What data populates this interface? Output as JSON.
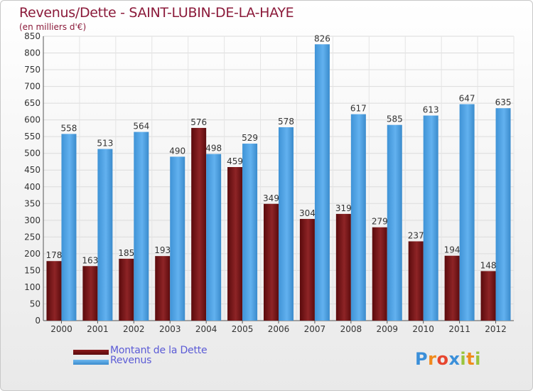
{
  "header": {
    "title": "Revenus/Dette - SAINT-LUBIN-DE-LA-HAYE",
    "subtitle": "(en milliers d'€)"
  },
  "chart_data": {
    "type": "bar",
    "categories": [
      "2000",
      "2001",
      "2002",
      "2003",
      "2004",
      "2005",
      "2006",
      "2007",
      "2008",
      "2009",
      "2010",
      "2011",
      "2012"
    ],
    "series": [
      {
        "name": "Montant de la Dette",
        "color": "#7a1416",
        "values": [
          178,
          163,
          185,
          193,
          576,
          459,
          349,
          304,
          319,
          279,
          237,
          194,
          148
        ]
      },
      {
        "name": "Revenus",
        "color": "#4a9fe0",
        "values": [
          558,
          513,
          564,
          490,
          498,
          529,
          578,
          826,
          617,
          585,
          613,
          647,
          635
        ]
      }
    ],
    "ylim": [
      0,
      850
    ],
    "yticks": [
      0,
      50,
      100,
      150,
      200,
      250,
      300,
      350,
      400,
      450,
      500,
      550,
      600,
      650,
      700,
      750,
      800,
      850
    ],
    "grid": true,
    "legend_position": "bottom-left"
  },
  "legend": {
    "debt_label": "Montant de la Dette",
    "revenue_label": "Revenus"
  },
  "logo": {
    "letters": [
      {
        "char": "P",
        "color": "#3a8fd9"
      },
      {
        "char": "r",
        "color": "#f08a1c"
      },
      {
        "char": "o",
        "color": "#e7462f"
      },
      {
        "char": "x",
        "color": "#3a8fd9"
      },
      {
        "char": "i",
        "color": "#9ac43d"
      },
      {
        "char": "t",
        "color": "#f08a1c"
      },
      {
        "char": "i",
        "color": "#9ac43d"
      }
    ]
  }
}
